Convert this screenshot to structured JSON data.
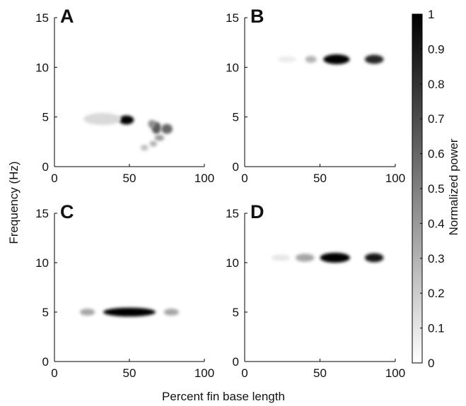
{
  "figure": {
    "ylabel": "Frequency (Hz)",
    "xlabel": "Percent fin base length",
    "colorbar_label": "Normalized power"
  },
  "chart_data": [
    {
      "type": "heatmap",
      "panel": "A",
      "xlim": [
        0,
        100
      ],
      "ylim": [
        0,
        15
      ],
      "xticks": [
        "0",
        "50",
        "100"
      ],
      "yticks": [
        "0",
        "5",
        "10",
        "15"
      ],
      "blobs": [
        {
          "x": 48,
          "y": 4.7,
          "width": 8,
          "height": 0.45,
          "power": 1.0
        },
        {
          "x": 32,
          "y": 4.8,
          "width": 20,
          "height": 0.6,
          "power": 0.15
        },
        {
          "x": 68,
          "y": 3.9,
          "width": 5,
          "height": 0.6,
          "power": 0.65
        },
        {
          "x": 75,
          "y": 3.8,
          "width": 6,
          "height": 0.5,
          "power": 0.6
        },
        {
          "x": 65,
          "y": 4.3,
          "width": 4,
          "height": 0.4,
          "power": 0.45
        },
        {
          "x": 70,
          "y": 2.9,
          "width": 5,
          "height": 0.3,
          "power": 0.4
        },
        {
          "x": 66,
          "y": 2.3,
          "width": 4,
          "height": 0.3,
          "power": 0.3
        },
        {
          "x": 60,
          "y": 1.9,
          "width": 4,
          "height": 0.3,
          "power": 0.25
        }
      ]
    },
    {
      "type": "heatmap",
      "panel": "B",
      "xlim": [
        0,
        100
      ],
      "ylim": [
        0,
        15
      ],
      "xticks": [
        "0",
        "50",
        "100"
      ],
      "yticks": [
        "0",
        "5",
        "10",
        "15"
      ],
      "blobs": [
        {
          "x": 61,
          "y": 10.8,
          "width": 14,
          "height": 0.5,
          "power": 1.0
        },
        {
          "x": 86,
          "y": 10.8,
          "width": 10,
          "height": 0.45,
          "power": 0.85
        },
        {
          "x": 44,
          "y": 10.8,
          "width": 6,
          "height": 0.35,
          "power": 0.3
        },
        {
          "x": 28,
          "y": 10.8,
          "width": 10,
          "height": 0.3,
          "power": 0.08
        }
      ]
    },
    {
      "type": "heatmap",
      "panel": "C",
      "xlim": [
        0,
        100
      ],
      "ylim": [
        0,
        15
      ],
      "xticks": [
        "0",
        "50",
        "100"
      ],
      "yticks": [
        "0",
        "5",
        "10",
        "15"
      ],
      "blobs": [
        {
          "x": 50,
          "y": 5.0,
          "width": 28,
          "height": 0.45,
          "power": 1.0
        },
        {
          "x": 22,
          "y": 5.0,
          "width": 8,
          "height": 0.35,
          "power": 0.35
        },
        {
          "x": 78,
          "y": 5.0,
          "width": 8,
          "height": 0.35,
          "power": 0.35
        }
      ]
    },
    {
      "type": "heatmap",
      "panel": "D",
      "xlim": [
        0,
        100
      ],
      "ylim": [
        0,
        15
      ],
      "xticks": [
        "0",
        "50",
        "100"
      ],
      "yticks": [
        "0",
        "5",
        "10",
        "15"
      ],
      "blobs": [
        {
          "x": 60,
          "y": 10.5,
          "width": 16,
          "height": 0.5,
          "power": 1.0
        },
        {
          "x": 86,
          "y": 10.5,
          "width": 10,
          "height": 0.45,
          "power": 0.9
        },
        {
          "x": 40,
          "y": 10.5,
          "width": 10,
          "height": 0.4,
          "power": 0.35
        },
        {
          "x": 24,
          "y": 10.5,
          "width": 10,
          "height": 0.3,
          "power": 0.1
        }
      ]
    },
    {
      "type": "colorbar",
      "label": "Normalized power",
      "range": [
        0,
        1
      ],
      "ticks": [
        "0",
        "0.1",
        "0.2",
        "0.3",
        "0.4",
        "0.5",
        "0.6",
        "0.7",
        "0.8",
        "0.9",
        "1"
      ]
    }
  ]
}
